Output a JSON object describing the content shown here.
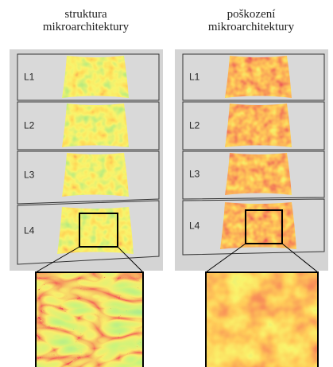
{
  "panels": [
    {
      "title": [
        "struktura",
        "mikroarchitektury"
      ],
      "levels": [
        "L1",
        "L2",
        "L3",
        "L4"
      ]
    },
    {
      "title": [
        "poškození",
        "mikroarchitektury"
      ],
      "levels": [
        "L1",
        "L2",
        "L3",
        "L4"
      ]
    }
  ]
}
